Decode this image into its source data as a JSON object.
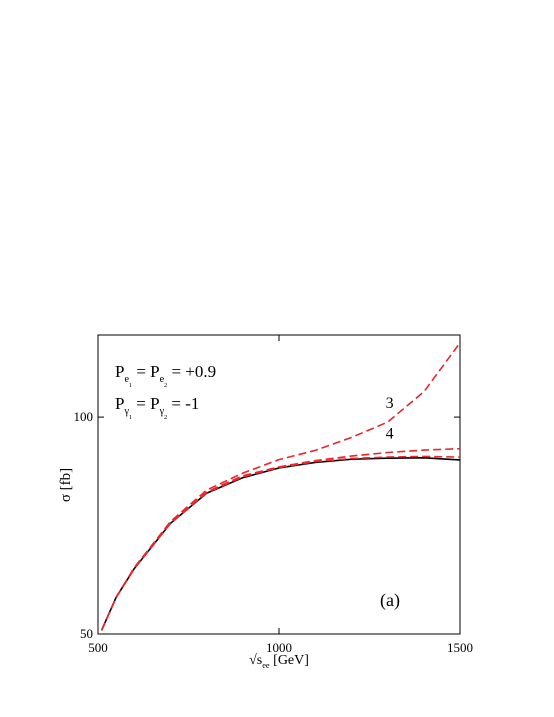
{
  "chart_data": {
    "type": "line",
    "x_label": [
      {
        "t": "√s"
      },
      {
        "t": "ee",
        "sub": 1
      },
      {
        "t": " [GeV]"
      }
    ],
    "y_label": "σ [fb]",
    "x": [
      510,
      550,
      600,
      700,
      800,
      900,
      1000,
      1100,
      1200,
      1300,
      1400,
      1500
    ],
    "series": [
      {
        "color": "#000000",
        "dash": false,
        "values": [
          50.6,
          56.2,
          61.6,
          71.2,
          78.4,
          82.4,
          85.0,
          86.5,
          87.4,
          87.7,
          87.8,
          87.2
        ]
      },
      {
        "name": "3",
        "color": "#e8262b",
        "dash": true,
        "values": [
          50.6,
          56.2,
          61.8,
          71.6,
          79.2,
          83.6,
          87.3,
          89.9,
          93.7,
          98.4,
          108.4,
          126.8
        ]
      },
      {
        "name": "4",
        "color": "#e8262b",
        "dash": true,
        "values": [
          50.6,
          56.2,
          61.6,
          71.3,
          78.7,
          82.9,
          85.3,
          87.0,
          88.3,
          89.3,
          90.0,
          90.4
        ]
      },
      {
        "color": "#e8262b",
        "dash": true,
        "values": [
          50.6,
          56.2,
          61.6,
          71.2,
          78.5,
          82.6,
          85.1,
          86.7,
          87.6,
          88.0,
          88.2,
          88.0
        ]
      }
    ],
    "xlim": [
      500,
      1500
    ],
    "xticks": [
      500,
      1000,
      1500
    ],
    "ylim": [
      50,
      130
    ],
    "yticks": [
      50,
      100
    ],
    "log_y": true,
    "annotations": [
      [
        {
          "t": "P"
        },
        {
          "t": "e",
          "sub": 1
        },
        {
          "t": "1",
          "sub": 2
        },
        {
          "t": " = P"
        },
        {
          "t": "e",
          "sub": 1
        },
        {
          "t": "2",
          "sub": 2
        },
        {
          "t": " = +0.9"
        }
      ],
      [
        {
          "t": "P"
        },
        {
          "t": "γ",
          "sub": 1
        },
        {
          "t": "1",
          "sub": 2
        },
        {
          "t": " = P"
        },
        {
          "t": "γ",
          "sub": 1
        },
        {
          "t": "2",
          "sub": 2
        },
        {
          "t": " = -1"
        }
      ]
    ],
    "panel_label": "(a)"
  }
}
